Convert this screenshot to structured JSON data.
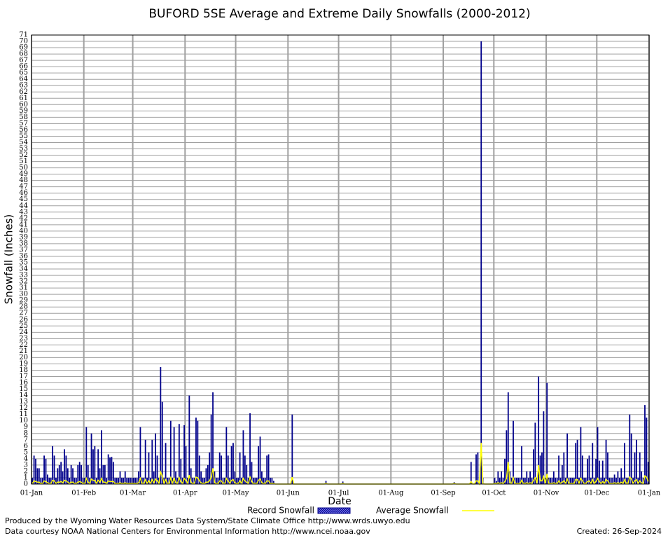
{
  "chart_data": {
    "type": "bar",
    "title": "BUFORD 5SE Average and Extreme Daily Snowfalls (2000-2012)",
    "x_label": "Date",
    "y_label": "Snowfall (Inches)",
    "x": [
      0,
      1,
      2,
      3,
      4,
      5,
      6,
      7,
      8,
      9,
      10,
      11,
      12,
      13,
      14,
      15,
      16,
      17,
      18,
      19,
      20,
      21,
      22,
      23,
      24,
      25,
      26,
      27,
      28,
      29,
      30,
      31,
      32,
      33,
      34,
      35,
      36,
      37,
      38,
      39,
      40,
      41,
      42,
      43,
      44,
      45,
      46,
      47,
      48,
      49,
      50,
      51,
      52,
      53,
      54,
      55,
      56,
      57,
      58,
      59,
      60,
      61,
      62,
      63,
      64,
      65,
      66,
      67,
      68,
      69,
      70,
      71,
      72,
      73,
      74,
      75,
      76,
      77,
      78,
      79,
      80,
      81,
      82,
      83,
      84,
      85,
      86,
      87,
      88,
      89,
      90,
      91,
      92,
      93,
      94,
      95,
      96,
      97,
      98,
      99,
      100,
      101,
      102,
      103,
      104,
      105,
      106,
      107,
      108,
      109,
      110,
      111,
      112,
      113,
      114,
      115,
      116,
      117,
      118,
      119,
      120,
      121,
      122,
      123,
      124,
      125,
      126,
      127,
      128,
      129,
      130,
      131,
      132,
      133,
      134,
      135,
      136,
      137,
      138,
      139,
      140,
      141,
      142,
      143,
      144,
      145,
      146,
      147,
      148,
      149,
      150,
      151,
      152,
      153,
      154,
      155,
      156,
      157,
      158,
      159,
      160,
      161,
      162,
      163,
      164,
      165,
      166,
      167,
      168,
      169,
      170,
      171,
      172,
      173,
      174,
      175,
      176,
      177,
      178,
      179,
      180,
      181,
      182,
      183,
      184,
      185,
      186,
      187,
      188,
      189,
      190,
      191,
      192,
      193,
      194,
      195,
      196,
      197,
      198,
      199,
      200,
      201,
      202,
      203,
      204,
      205,
      206,
      207,
      208,
      209,
      210,
      211,
      212,
      213,
      214,
      215,
      216,
      217,
      218,
      219,
      220,
      221,
      222,
      223,
      224,
      225,
      226,
      227,
      228,
      229,
      230,
      231,
      232,
      233,
      234,
      235,
      236,
      237,
      238,
      239,
      240,
      241,
      242,
      243,
      244,
      245,
      246,
      247,
      248,
      249,
      250,
      251,
      252,
      253,
      254,
      255,
      256,
      257,
      258,
      259,
      260,
      261,
      262,
      263,
      264,
      265,
      266,
      267,
      268,
      269,
      270,
      271,
      272,
      273,
      274,
      275,
      276,
      277,
      278,
      279,
      280,
      281,
      282,
      283,
      284,
      285,
      286,
      287,
      288,
      289,
      290,
      291,
      292,
      293,
      294,
      295,
      296,
      297,
      298,
      299,
      300,
      301,
      302,
      303,
      304,
      305,
      306,
      307,
      308,
      309,
      310,
      311,
      312,
      313,
      314,
      315,
      316,
      317,
      318,
      319,
      320,
      321,
      322,
      323,
      324,
      325,
      326,
      327,
      328,
      329,
      330,
      331,
      332,
      333,
      334,
      335,
      336,
      337,
      338,
      339,
      340,
      341,
      342,
      343,
      344,
      345,
      346,
      347,
      348,
      349,
      350,
      351,
      352,
      353,
      354,
      355,
      356,
      357,
      358,
      359,
      360,
      361,
      362,
      363,
      364,
      365
    ],
    "series": [
      {
        "name": "Record Snowfall",
        "color": "#00008b",
        "type": "bar",
        "values": [
          1,
          4.5,
          4,
          2.5,
          2.5,
          1,
          1,
          4.5,
          4,
          1.5,
          1,
          1,
          6,
          4.5,
          1,
          2.5,
          3,
          3.5,
          2,
          5.5,
          4.5,
          2.5,
          1,
          3,
          2.5,
          1,
          1,
          3,
          3.5,
          3,
          1,
          1,
          9,
          3,
          1,
          8,
          5.5,
          6,
          1,
          5.5,
          2.5,
          8.5,
          3,
          3,
          1,
          4.7,
          4.2,
          4.3,
          3.5,
          1,
          1,
          1,
          2,
          1,
          1,
          2,
          1,
          1,
          1,
          1,
          1,
          1,
          1,
          2,
          9,
          1,
          1,
          7,
          1,
          5,
          1,
          7,
          2,
          8,
          4.5,
          1,
          18.5,
          13,
          1,
          6.5,
          1,
          1,
          10,
          1,
          9,
          2,
          1,
          9.5,
          4,
          1,
          9.3,
          6,
          1,
          14,
          2.5,
          1,
          1,
          10.5,
          10,
          4.5,
          2,
          1,
          1,
          2.5,
          3,
          5,
          11,
          14.5,
          2,
          1,
          1,
          5,
          4.5,
          1,
          1,
          9,
          4.5,
          1,
          6,
          6.5,
          2,
          1,
          1,
          5,
          1,
          8.5,
          4.5,
          3,
          1,
          11.2,
          3.5,
          1,
          1,
          1,
          6,
          7.5,
          2,
          1,
          1,
          4.5,
          4.7,
          1,
          1,
          0.5,
          0,
          0,
          0,
          0,
          0,
          0,
          0,
          0,
          0,
          0,
          11,
          0,
          0,
          0,
          0,
          0,
          0,
          0,
          0,
          0,
          0,
          0,
          0,
          0,
          0,
          0,
          0,
          0,
          0,
          0,
          0.5,
          0,
          0,
          0,
          0,
          0,
          0,
          0,
          0,
          0,
          0.4,
          0,
          0,
          0,
          0,
          0,
          0,
          0,
          0,
          0,
          0,
          0,
          0,
          0,
          0,
          0,
          0,
          0,
          0,
          0,
          0,
          0,
          0,
          0,
          0,
          0,
          0,
          0,
          0,
          0,
          0,
          0,
          0,
          0,
          0,
          0,
          0,
          0,
          0,
          0,
          0,
          0,
          0,
          0,
          0,
          0,
          0,
          0,
          0,
          0,
          0,
          0,
          0,
          0,
          0,
          0,
          0,
          0,
          0,
          0,
          0,
          0,
          0,
          0,
          0,
          0,
          0.3,
          0,
          0,
          0,
          0,
          0,
          0,
          0,
          0,
          0,
          3.5,
          0,
          0,
          4.7,
          5,
          0,
          70,
          1,
          0,
          0,
          0,
          0,
          0,
          0,
          1,
          0.5,
          2,
          1,
          2,
          1,
          4,
          8.5,
          14.5,
          2,
          1,
          10,
          1,
          1,
          1,
          1,
          6,
          1,
          1,
          2,
          1,
          2,
          1,
          5.5,
          9.7,
          1,
          17,
          4.5,
          5,
          11.5,
          1,
          16,
          1,
          1,
          1,
          2,
          1,
          1,
          4.5,
          1,
          3,
          5,
          1,
          8,
          1,
          1,
          1,
          1,
          6.5,
          7,
          1,
          9,
          4.5,
          1,
          1,
          4,
          4.5,
          1,
          6.5,
          1,
          4,
          9,
          3.7,
          1,
          3.7,
          1,
          7,
          5,
          1,
          1,
          1,
          1.5,
          1,
          2,
          1,
          2.5,
          1,
          6.5,
          1,
          1,
          11,
          8,
          1,
          5,
          7,
          1,
          5,
          2,
          1,
          12.5,
          10.5,
          3.5
        ]
      },
      {
        "name": "Average Snowfall",
        "color": "#ffff00",
        "type": "line",
        "values": [
          0.1,
          0.5,
          0.4,
          0.3,
          0.3,
          0.1,
          0.1,
          0.5,
          0.4,
          0.2,
          0.1,
          0.1,
          0.6,
          0.5,
          0.1,
          0.3,
          0.3,
          0.4,
          0.2,
          0.6,
          0.5,
          0.3,
          0.1,
          0.3,
          0.3,
          0.1,
          0.1,
          0.3,
          0.4,
          0.3,
          0.1,
          0.1,
          0.9,
          0.3,
          0.1,
          0.8,
          0.6,
          0.6,
          0.1,
          0.6,
          0.3,
          0.9,
          0.3,
          0.3,
          0.1,
          0.5,
          0.4,
          0.4,
          0.4,
          0.1,
          0.1,
          0.1,
          0.2,
          0.1,
          0.1,
          0.2,
          0.1,
          0.1,
          0.1,
          0.1,
          0.1,
          0.1,
          0.1,
          0.2,
          0.9,
          0.1,
          0.1,
          0.7,
          0.1,
          0.5,
          0.1,
          0.7,
          0.2,
          0.8,
          0.5,
          0.1,
          1.9,
          1.3,
          0.1,
          0.7,
          0.1,
          0.1,
          1,
          0.1,
          0.9,
          0.2,
          0.1,
          1,
          0.4,
          0.1,
          0.9,
          0.6,
          0.1,
          1.4,
          0.3,
          0.1,
          0.1,
          1.1,
          1,
          0.5,
          0.2,
          0.1,
          0.1,
          0.3,
          0.3,
          0.5,
          1.1,
          2.5,
          0.2,
          0.1,
          0.1,
          0.5,
          0.5,
          0.1,
          0.1,
          0.9,
          0.5,
          0.1,
          0.6,
          0.7,
          0.2,
          0.1,
          0.1,
          0.5,
          0.1,
          0.9,
          0.5,
          0.3,
          0.1,
          1.1,
          0.4,
          0.1,
          0.1,
          0.1,
          0.6,
          0.8,
          0.2,
          0.1,
          0.1,
          0.5,
          0.5,
          0.1,
          0.1,
          0.1,
          0,
          0,
          0,
          0,
          0,
          0,
          0,
          0,
          0,
          0,
          1.1,
          0,
          0,
          0,
          0,
          0,
          0,
          0,
          0,
          0,
          0,
          0,
          0,
          0,
          0,
          0,
          0,
          0,
          0,
          0,
          0.1,
          0,
          0,
          0,
          0,
          0,
          0,
          0,
          0,
          0,
          0.1,
          0,
          0,
          0,
          0,
          0,
          0,
          0,
          0,
          0,
          0,
          0,
          0,
          0,
          0,
          0,
          0,
          0,
          0,
          0,
          0,
          0,
          0,
          0,
          0,
          0,
          0,
          0,
          0,
          0,
          0,
          0,
          0,
          0,
          0,
          0,
          0,
          0,
          0,
          0,
          0,
          0,
          0,
          0,
          0,
          0,
          0,
          0,
          0,
          0,
          0,
          0,
          0,
          0,
          0,
          0,
          0,
          0,
          0,
          0,
          0,
          0,
          0,
          0,
          0,
          0,
          0.1,
          0,
          0,
          0,
          0,
          0,
          0,
          0,
          0,
          0,
          0.4,
          0,
          0,
          0.5,
          0.5,
          0,
          6.5,
          0.1,
          0,
          0,
          0,
          0,
          0,
          0,
          0.1,
          0.1,
          0.2,
          0.1,
          0.2,
          0.1,
          0.4,
          0.9,
          3.5,
          0.2,
          0.1,
          1,
          0.1,
          0.1,
          0.1,
          0.1,
          0.6,
          0.1,
          0.1,
          0.2,
          0.1,
          0.2,
          0.1,
          0.6,
          1,
          0.1,
          3,
          0.5,
          0.5,
          1.2,
          0.1,
          1.6,
          0.1,
          0.1,
          0.1,
          0.2,
          0.1,
          0.1,
          0.5,
          0.1,
          0.3,
          0.5,
          0.1,
          0.8,
          0.1,
          0.1,
          0.1,
          0.1,
          0.7,
          0.7,
          0.1,
          0.9,
          0.5,
          0.1,
          0.1,
          0.4,
          0.5,
          0.1,
          0.7,
          0.1,
          0.4,
          0.9,
          0.4,
          0.1,
          0.4,
          0.1,
          0.7,
          0.5,
          0.1,
          0.1,
          0.1,
          0.2,
          0.1,
          0.2,
          0.1,
          0.3,
          0.1,
          0.7,
          0.1,
          0.1,
          1.1,
          0.8,
          0.1,
          0.5,
          0.7,
          0.1,
          0.5,
          0.2,
          0.1,
          1.3,
          1.1,
          0.4
        ]
      }
    ],
    "xlim": [
      0,
      366
    ],
    "xticks": [
      {
        "value": 0,
        "label": "01-Jan"
      },
      {
        "value": 31,
        "label": "01-Feb"
      },
      {
        "value": 60,
        "label": "01-Mar"
      },
      {
        "value": 91,
        "label": "01-Apr"
      },
      {
        "value": 121,
        "label": "01-May"
      },
      {
        "value": 152,
        "label": "01-Jun"
      },
      {
        "value": 182,
        "label": "01-Jul"
      },
      {
        "value": 213,
        "label": "01-Aug"
      },
      {
        "value": 244,
        "label": "01-Sep"
      },
      {
        "value": 274,
        "label": "01-Oct"
      },
      {
        "value": 305,
        "label": "01-Nov"
      },
      {
        "value": 335,
        "label": "01-Dec"
      },
      {
        "value": 366,
        "label": "01-Jan"
      }
    ],
    "ylim": [
      0,
      71
    ],
    "yticks": [
      0,
      1,
      2,
      3,
      4,
      5,
      6,
      7,
      8,
      9,
      10,
      11,
      12,
      13,
      14,
      15,
      16,
      17,
      18,
      19,
      20,
      21,
      22,
      23,
      24,
      25,
      26,
      27,
      28,
      29,
      30,
      31,
      32,
      33,
      34,
      35,
      36,
      37,
      38,
      39,
      40,
      41,
      42,
      43,
      44,
      45,
      46,
      47,
      48,
      49,
      50,
      51,
      52,
      53,
      54,
      55,
      56,
      57,
      58,
      59,
      60,
      61,
      62,
      63,
      64,
      65,
      66,
      67,
      68,
      69,
      70,
      71
    ],
    "grid": true
  },
  "footer": {
    "left": [
      "Produced by the Wyoming Water Resources Data System/State Climate Office http://www.wrds.uwyo.edu",
      "Data courtesy NOAA National Centers for Environmental Information http://www.ncei.noaa.gov"
    ],
    "right": "Created:  26-Sep-2024"
  }
}
